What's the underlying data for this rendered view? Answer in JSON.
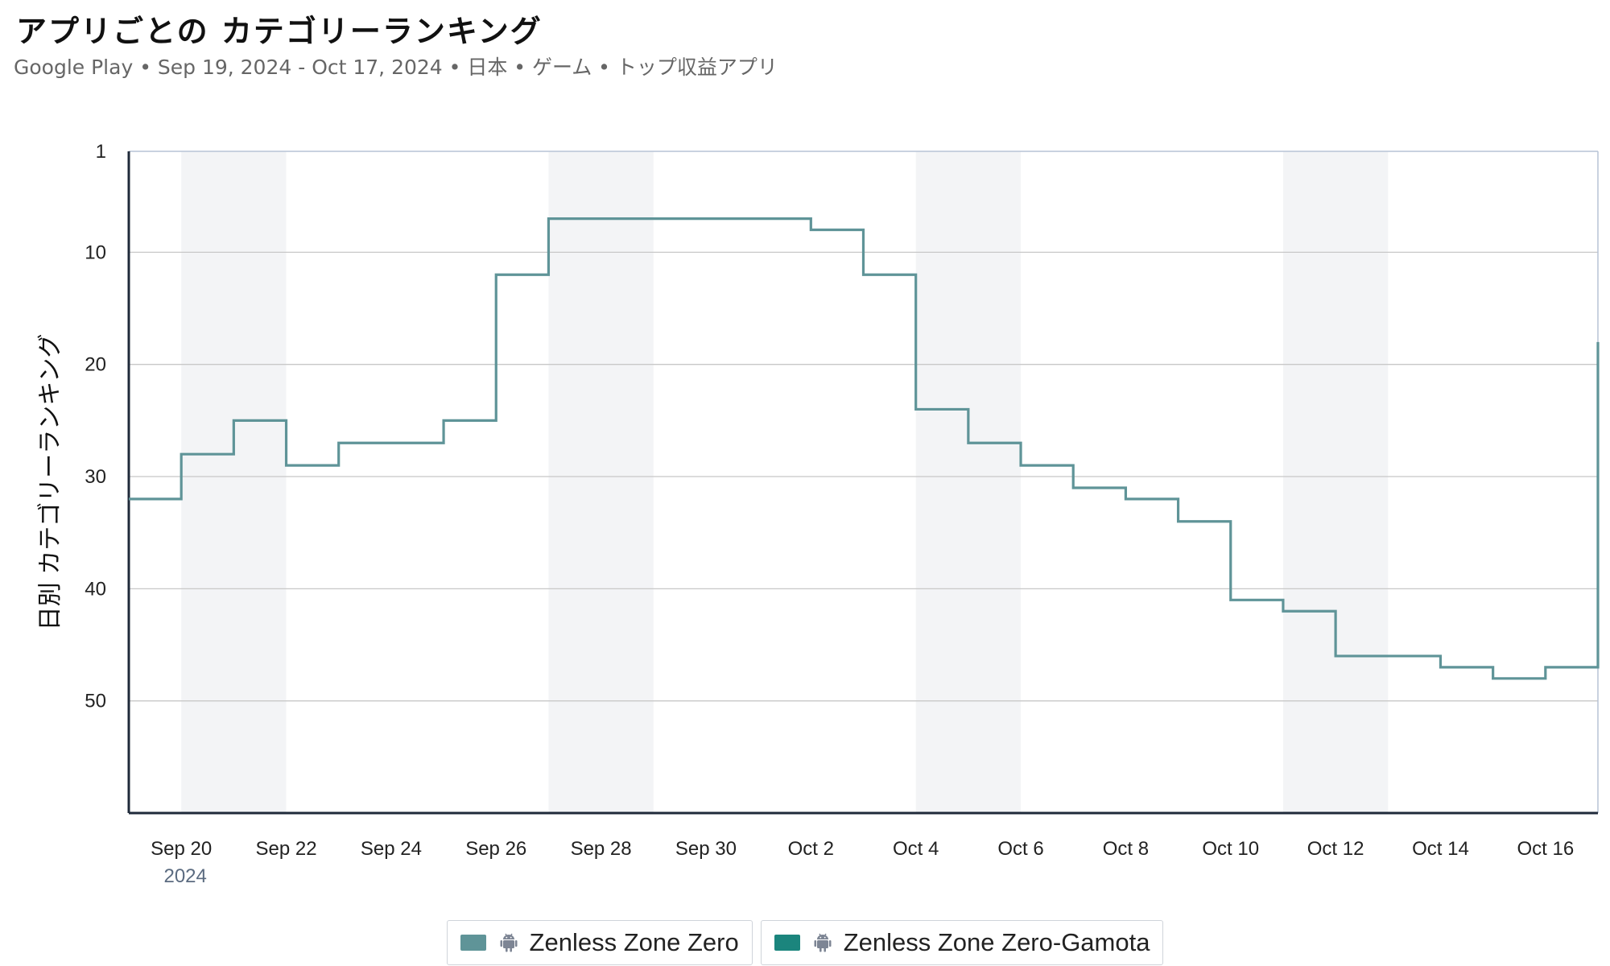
{
  "header": {
    "title": "アプリごとの カテゴリーランキング",
    "subtitle": "Google Play • Sep 19, 2024 - Oct 17, 2024 • 日本 • ゲーム • トップ収益アプリ"
  },
  "chart_data": {
    "type": "line",
    "step": true,
    "ylabel": "日別 カテゴリーランキング",
    "y_inverted": true,
    "ylim": [
      1,
      60
    ],
    "yticks": [
      1,
      10,
      20,
      30,
      40,
      50
    ],
    "x_start": "2024-09-19",
    "x_end": "2024-10-17",
    "x_ticks": [
      "Sep 20",
      "Sep 22",
      "Sep 24",
      "Sep 26",
      "Sep 28",
      "Sep 30",
      "Oct 2",
      "Oct 4",
      "Oct 6",
      "Oct 8",
      "Oct 10",
      "Oct 12",
      "Oct 14",
      "Oct 16"
    ],
    "x_year_label": "2024",
    "weekend_bands": [
      [
        "2024-09-20",
        "2024-09-22"
      ],
      [
        "2024-09-27",
        "2024-09-29"
      ],
      [
        "2024-10-04",
        "2024-10-06"
      ],
      [
        "2024-10-11",
        "2024-10-13"
      ]
    ],
    "grid": true,
    "legend_position": "bottom",
    "series": [
      {
        "name": "Zenless Zone Zero",
        "color": "#5f9498",
        "icon": "android-icon",
        "x": [
          "2024-09-19",
          "2024-09-20",
          "2024-09-21",
          "2024-09-22",
          "2024-09-23",
          "2024-09-24",
          "2024-09-25",
          "2024-09-26",
          "2024-09-27",
          "2024-09-28",
          "2024-09-29",
          "2024-09-30",
          "2024-10-01",
          "2024-10-02",
          "2024-10-03",
          "2024-10-04",
          "2024-10-05",
          "2024-10-06",
          "2024-10-07",
          "2024-10-08",
          "2024-10-09",
          "2024-10-10",
          "2024-10-11",
          "2024-10-12",
          "2024-10-13",
          "2024-10-14",
          "2024-10-15",
          "2024-10-16",
          "2024-10-17"
        ],
        "values": [
          32,
          28,
          25,
          29,
          27,
          27,
          25,
          12,
          7,
          7,
          7,
          7,
          7,
          8,
          12,
          24,
          27,
          29,
          31,
          32,
          34,
          41,
          42,
          46,
          46,
          47,
          48,
          47,
          18
        ]
      },
      {
        "name": "Zenless Zone Zero-Gamota",
        "color": "#1b857d",
        "icon": "android-icon",
        "x": [],
        "values": []
      }
    ]
  }
}
